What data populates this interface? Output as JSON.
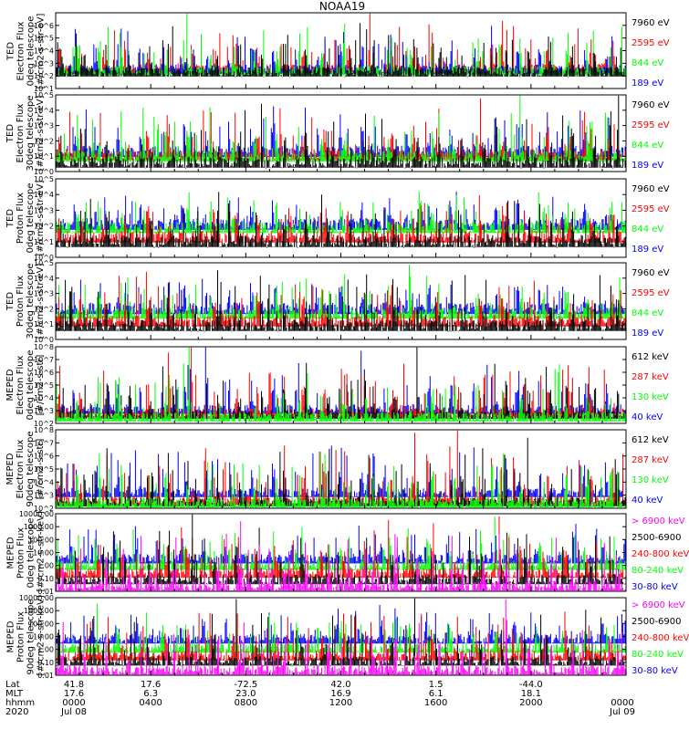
{
  "title": "NOAA19",
  "chart_data": [
    {
      "type": "line",
      "ylabel": [
        "TED",
        "Electron Flux",
        "0deg telescope",
        "[#/cm2-s-str-eV]"
      ],
      "yscale": "log",
      "ylim": [
        1,
        1000000
      ],
      "ytick_labels": [
        "10^1",
        "10^2",
        "10^3",
        "10^4",
        "10^5",
        "10^6"
      ],
      "series": [
        {
          "name": "7960 eV",
          "color": "#000000",
          "level": 1.3
        },
        {
          "name": "2595 eV",
          "color": "#ff0000",
          "level": 1.6
        },
        {
          "name": "844 eV",
          "color": "#00ff00",
          "level": 1.4
        },
        {
          "name": "189 eV",
          "color": "#0000ff",
          "level": 1.5
        }
      ]
    },
    {
      "type": "line",
      "ylabel": [
        "TED",
        "Electron Flux",
        "30deg telescope",
        "[#/cm2-s-str-eV]"
      ],
      "yscale": "log",
      "ylim": [
        1,
        100000
      ],
      "ytick_labels": [
        "10^0",
        "10^1",
        "10^2",
        "10^3",
        "10^4",
        "10^5"
      ],
      "series": [
        {
          "name": "7960 eV",
          "color": "#000000",
          "level": 0.6
        },
        {
          "name": "2595 eV",
          "color": "#ff0000",
          "level": 1.1
        },
        {
          "name": "844 eV",
          "color": "#00ff00",
          "level": 1.0
        },
        {
          "name": "189 eV",
          "color": "#0000ff",
          "level": 1.3
        }
      ]
    },
    {
      "type": "line",
      "ylabel": [
        "TED",
        "Proton Flux",
        "0deg telescope",
        "[#/cm2-s-str-eV]"
      ],
      "yscale": "log",
      "ylim": [
        1,
        100000
      ],
      "ytick_labels": [
        "10^0",
        "10^1",
        "10^2",
        "10^3",
        "10^4",
        "10^5"
      ],
      "series": [
        {
          "name": "7960 eV",
          "color": "#000000",
          "level": 1.0
        },
        {
          "name": "2595 eV",
          "color": "#ff0000",
          "level": 1.3
        },
        {
          "name": "844 eV",
          "color": "#00ff00",
          "level": 1.9
        },
        {
          "name": "189 eV",
          "color": "#0000ff",
          "level": 2.1
        }
      ]
    },
    {
      "type": "line",
      "ylabel": [
        "TED",
        "Proton Flux",
        "30deg telescope",
        "[#/cm2-s-str-eV]"
      ],
      "yscale": "log",
      "ylim": [
        1,
        100000
      ],
      "ytick_labels": [
        "10^0",
        "10^1",
        "10^2",
        "10^3",
        "10^4",
        "10^5"
      ],
      "series": [
        {
          "name": "7960 eV",
          "color": "#000000",
          "level": 0.9
        },
        {
          "name": "2595 eV",
          "color": "#ff0000",
          "level": 1.2
        },
        {
          "name": "844 eV",
          "color": "#00ff00",
          "level": 1.7
        },
        {
          "name": "189 eV",
          "color": "#0000ff",
          "level": 2.0
        }
      ]
    },
    {
      "type": "line",
      "ylabel": [
        "MEPED",
        "Electron Flux",
        "0deg telescope",
        "[#/cm2-s-str]"
      ],
      "yscale": "log",
      "ylim": [
        100,
        100000000
      ],
      "ytick_labels": [
        "10^2",
        "10^3",
        "10^4",
        "10^5",
        "10^6",
        "10^7",
        "10^8"
      ],
      "series": [
        {
          "name": "612 keV",
          "color": "#000000",
          "level": 2.7
        },
        {
          "name": "287 keV",
          "color": "#ff0000",
          "level": 2.8
        },
        {
          "name": "130 keV",
          "color": "#00ff00",
          "level": 2.5
        },
        {
          "name": "40 keV",
          "color": "#0000ff",
          "level": 3.1
        }
      ]
    },
    {
      "type": "line",
      "ylabel": [
        "MEPED",
        "Electron Flux",
        "90deg telescope",
        "[#/cm2-s-str]"
      ],
      "yscale": "log",
      "ylim": [
        100,
        100000000
      ],
      "ytick_labels": [
        "10^2",
        "10^3",
        "10^4",
        "10^5",
        "10^6",
        "10^7",
        "10^8"
      ],
      "series": [
        {
          "name": "612 keV",
          "color": "#000000",
          "level": 2.5
        },
        {
          "name": "287 keV",
          "color": "#ff0000",
          "level": 2.6
        },
        {
          "name": "130 keV",
          "color": "#00ff00",
          "level": 2.4
        },
        {
          "name": "40 keV",
          "color": "#0000ff",
          "level": 3.2
        }
      ]
    },
    {
      "type": "line",
      "ylabel": [
        "MEPED",
        "Proton Flux",
        "0deg telescope",
        "[#/cm2-s-str-keV]"
      ],
      "yscale": "log",
      "ylim": [
        0.01,
        10000
      ],
      "ytick_labels": [
        "0.01",
        "0.10",
        "1.00",
        "10.00",
        "100.00",
        "1000.00",
        "10000.00"
      ],
      "series": [
        {
          "name": "> 6900 keV",
          "color": "#ff00ff",
          "level": -1.6
        },
        {
          "name": "2500-6900",
          "color": "#000000",
          "level": -1.1
        },
        {
          "name": "240-800 keV",
          "color": "#ff0000",
          "level": -0.6
        },
        {
          "name": "80-240 keV",
          "color": "#00ff00",
          "level": 0.0
        },
        {
          "name": "30-80 keV",
          "color": "#0000ff",
          "level": 0.5
        }
      ]
    },
    {
      "type": "line",
      "ylabel": [
        "MEPED",
        "Proton Flux",
        "90deg telescope",
        "[#/cm2-s-str-keV]"
      ],
      "yscale": "log",
      "ylim": [
        0.01,
        10000
      ],
      "ytick_labels": [
        "0.01",
        "0.10",
        "1.00",
        "10.00",
        "100.00",
        "1000.00",
        "10000.00"
      ],
      "series": [
        {
          "name": "> 6900 keV",
          "color": "#ff00ff",
          "level": -1.6
        },
        {
          "name": "2500-6900",
          "color": "#000000",
          "level": -0.9
        },
        {
          "name": "240-800 keV",
          "color": "#ff0000",
          "level": -0.5
        },
        {
          "name": "80-240 keV",
          "color": "#00ff00",
          "level": 0.1
        },
        {
          "name": "30-80 keV",
          "color": "#0000ff",
          "level": 0.8
        }
      ]
    }
  ],
  "xaxis": {
    "row_labels": [
      "Lat",
      "MLT",
      "hhmm",
      "2020"
    ],
    "ticks": [
      {
        "lat": "41.8",
        "mlt": "17.6",
        "hhmm": "0000",
        "date": "Jul 08"
      },
      {
        "lat": "17.6",
        "mlt": "6.3",
        "hhmm": "0400",
        "date": ""
      },
      {
        "lat": "-72.5",
        "mlt": "23.0",
        "hhmm": "0800",
        "date": ""
      },
      {
        "lat": "42.0",
        "mlt": "16.9",
        "hhmm": "1200",
        "date": ""
      },
      {
        "lat": "1.5",
        "mlt": "6.1",
        "hhmm": "1600",
        "date": ""
      },
      {
        "lat": "-44.0",
        "mlt": "18.1",
        "hhmm": "2000",
        "date": ""
      },
      {
        "lat": "",
        "mlt": "",
        "hhmm": "0000",
        "date": "Jul 09"
      }
    ],
    "xlim_hours": [
      0,
      24
    ]
  }
}
